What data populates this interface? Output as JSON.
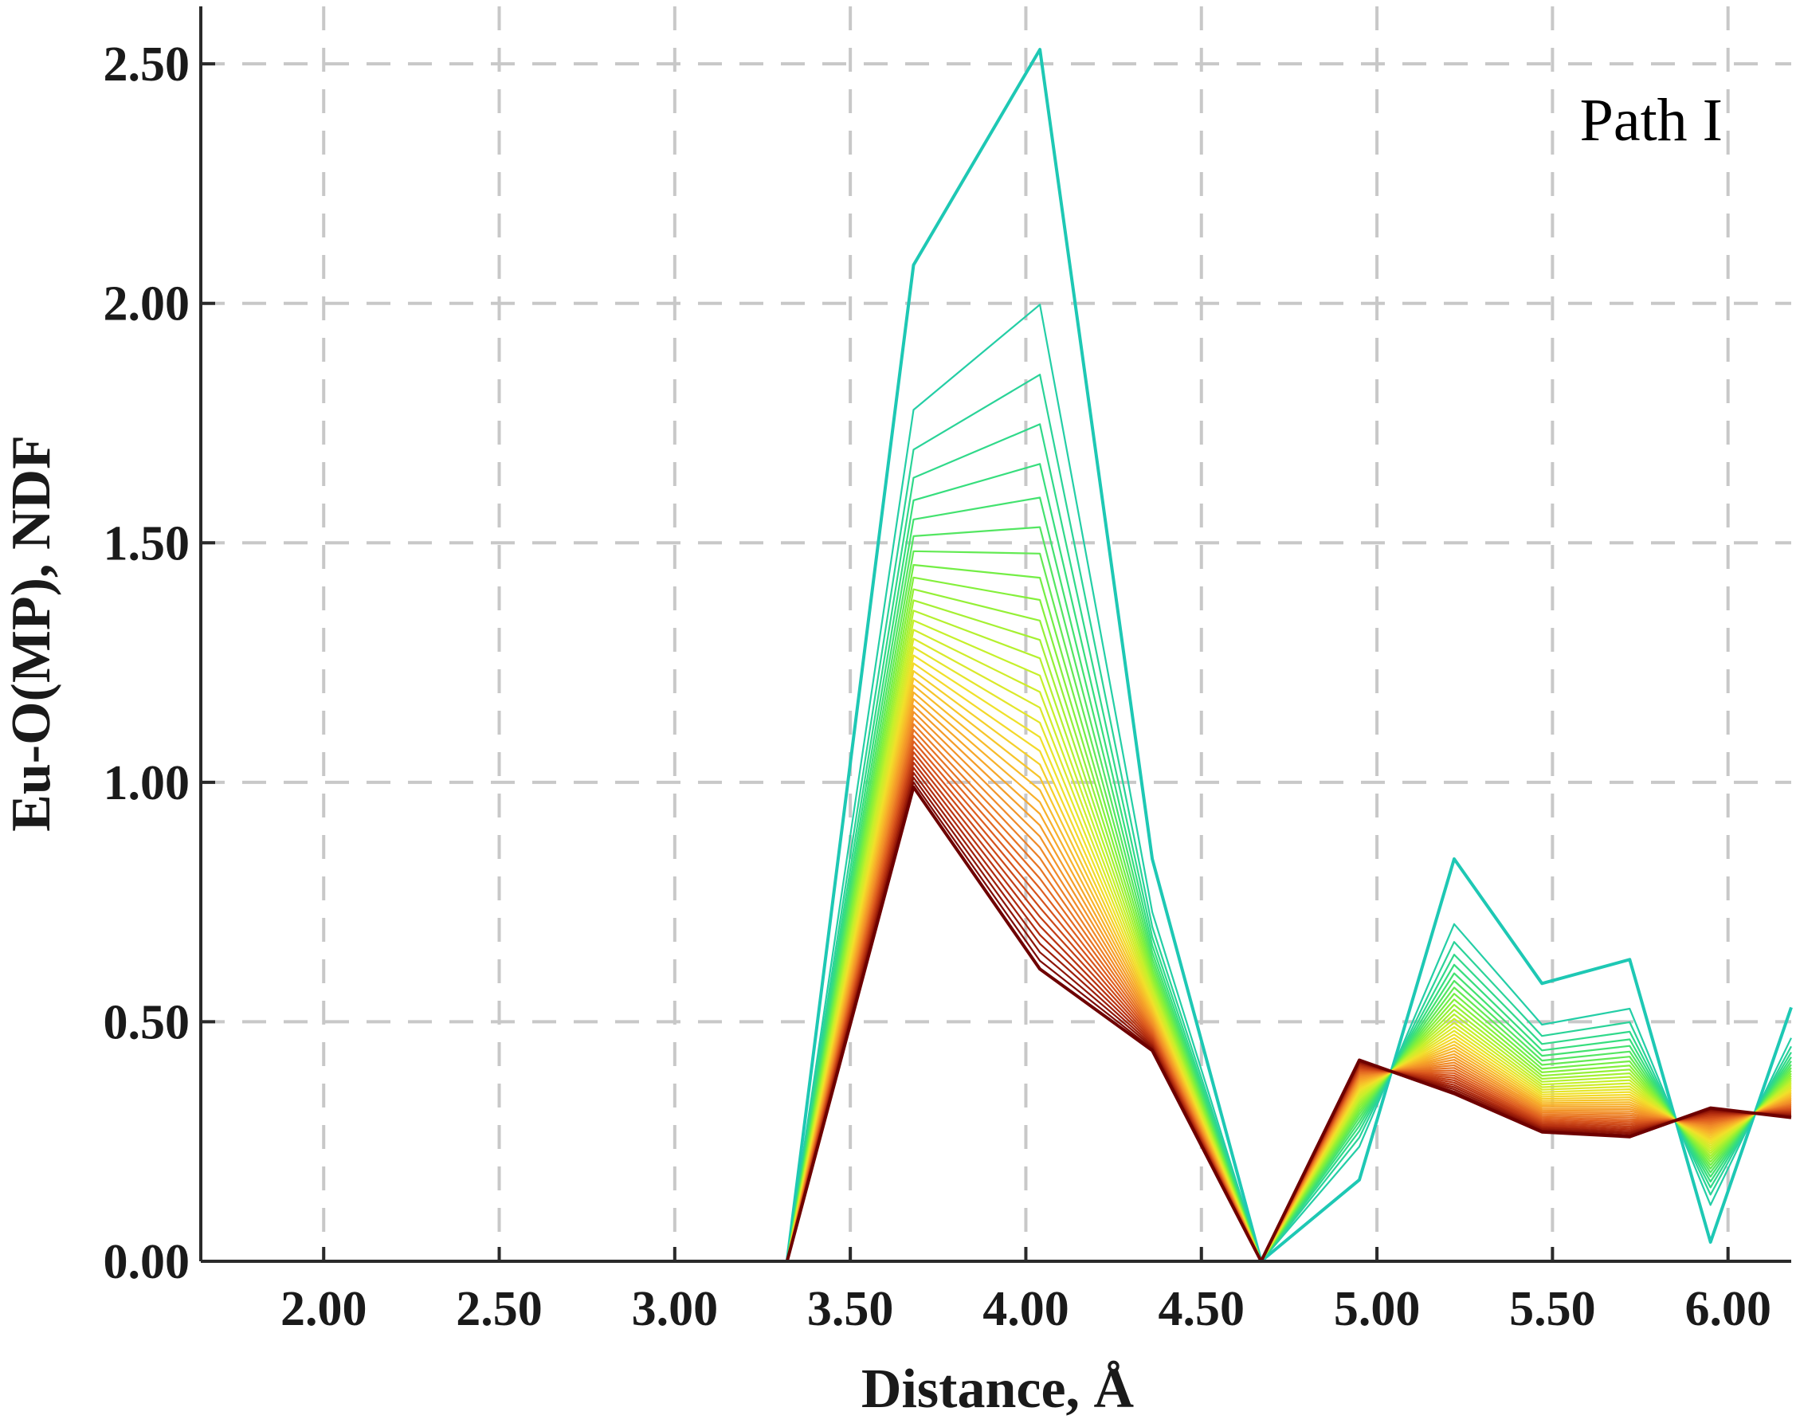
{
  "chart_data": {
    "type": "line",
    "title": "",
    "xlabel": "Distance, Å",
    "ylabel": "Eu-O(MP), NDF",
    "annotation": "Path I",
    "xlim": [
      1.65,
      6.18
    ],
    "ylim": [
      0.0,
      2.62
    ],
    "xticks": [
      2.0,
      2.5,
      3.0,
      3.5,
      4.0,
      4.5,
      5.0,
      5.5,
      6.0
    ],
    "yticks": [
      0.0,
      0.5,
      1.0,
      1.5,
      2.0,
      2.5
    ],
    "xtick_labels": [
      "2.00",
      "2.50",
      "3.00",
      "3.50",
      "4.00",
      "4.50",
      "5.00",
      "5.50",
      "6.00"
    ],
    "ytick_labels": [
      "0.00",
      "0.50",
      "1.00",
      "1.50",
      "2.00",
      "2.50"
    ],
    "grid": true,
    "legend": "none",
    "x": [
      1.65,
      3.32,
      3.68,
      4.04,
      4.36,
      4.67,
      4.95,
      5.22,
      5.47,
      5.72,
      5.95,
      6.18
    ],
    "series_count": 40,
    "series_first": [
      0.0,
      0.0,
      2.08,
      2.53,
      0.84,
      0.0,
      0.17,
      0.84,
      0.58,
      0.63,
      0.04,
      0.53
    ],
    "series_last": [
      0.0,
      0.0,
      0.99,
      0.61,
      0.44,
      0.0,
      0.42,
      0.35,
      0.27,
      0.26,
      0.32,
      0.3
    ],
    "color_start": "#1ec8b4",
    "color_end": "#6e0000",
    "color_gradient": [
      "#1ec8b4",
      "#38e078",
      "#7ef03c",
      "#c6f02a",
      "#f2e02a",
      "#f8b42a",
      "#f08a28",
      "#dc5a1e",
      "#b42d0f",
      "#6e0000"
    ]
  }
}
